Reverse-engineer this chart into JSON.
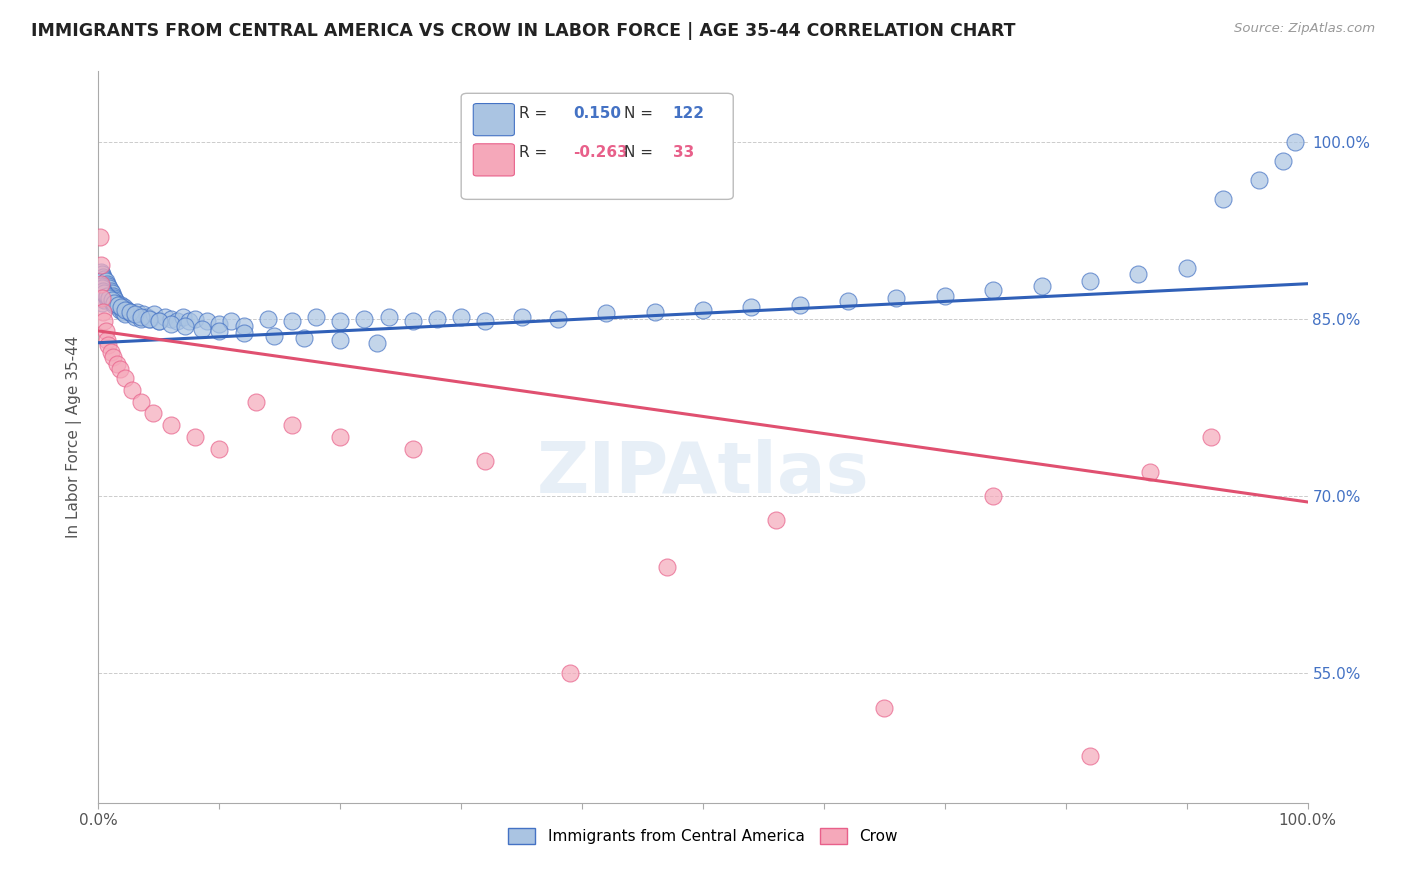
{
  "title": "IMMIGRANTS FROM CENTRAL AMERICA VS CROW IN LABOR FORCE | AGE 35-44 CORRELATION CHART",
  "source": "Source: ZipAtlas.com",
  "ylabel": "In Labor Force | Age 35-44",
  "xlim": [
    0.0,
    1.0
  ],
  "ylim": [
    0.44,
    1.06
  ],
  "y_ticks": [
    0.55,
    0.7,
    0.85,
    1.0
  ],
  "y_tick_labels": [
    "55.0%",
    "70.0%",
    "85.0%",
    "100.0%"
  ],
  "blue_R": 0.15,
  "blue_N": 122,
  "pink_R": -0.263,
  "pink_N": 33,
  "blue_color": "#aac4e2",
  "pink_color": "#f5a8ba",
  "blue_edge_color": "#4472c4",
  "pink_edge_color": "#e8608a",
  "blue_line_color": "#3060b8",
  "pink_line_color": "#e05070",
  "legend_label_blue": "Immigrants from Central America",
  "legend_label_pink": "Crow",
  "blue_line_y0": 0.83,
  "blue_line_y1": 0.88,
  "pink_line_y0": 0.84,
  "pink_line_y1": 0.695,
  "blue_scatter_x": [
    0.001,
    0.001,
    0.001,
    0.002,
    0.002,
    0.002,
    0.002,
    0.003,
    0.003,
    0.003,
    0.003,
    0.003,
    0.004,
    0.004,
    0.004,
    0.004,
    0.005,
    0.005,
    0.005,
    0.005,
    0.006,
    0.006,
    0.006,
    0.007,
    0.007,
    0.007,
    0.008,
    0.008,
    0.009,
    0.009,
    0.01,
    0.01,
    0.011,
    0.011,
    0.012,
    0.012,
    0.013,
    0.013,
    0.014,
    0.015,
    0.016,
    0.017,
    0.018,
    0.019,
    0.02,
    0.021,
    0.022,
    0.024,
    0.026,
    0.028,
    0.03,
    0.032,
    0.035,
    0.037,
    0.04,
    0.043,
    0.046,
    0.05,
    0.055,
    0.06,
    0.065,
    0.07,
    0.075,
    0.08,
    0.09,
    0.1,
    0.11,
    0.12,
    0.14,
    0.16,
    0.18,
    0.2,
    0.22,
    0.24,
    0.26,
    0.28,
    0.3,
    0.32,
    0.35,
    0.38,
    0.42,
    0.46,
    0.5,
    0.54,
    0.58,
    0.62,
    0.66,
    0.7,
    0.74,
    0.78,
    0.82,
    0.86,
    0.9,
    0.93,
    0.96,
    0.98,
    0.99,
    0.002,
    0.003,
    0.004,
    0.005,
    0.007,
    0.009,
    0.011,
    0.013,
    0.016,
    0.019,
    0.022,
    0.026,
    0.03,
    0.035,
    0.042,
    0.05,
    0.06,
    0.072,
    0.086,
    0.1,
    0.12,
    0.145,
    0.17,
    0.2,
    0.23
  ],
  "blue_scatter_y": [
    0.885,
    0.878,
    0.872,
    0.89,
    0.882,
    0.875,
    0.868,
    0.888,
    0.882,
    0.876,
    0.87,
    0.864,
    0.886,
    0.88,
    0.874,
    0.868,
    0.884,
    0.878,
    0.872,
    0.866,
    0.882,
    0.876,
    0.87,
    0.88,
    0.874,
    0.868,
    0.878,
    0.872,
    0.876,
    0.87,
    0.874,
    0.868,
    0.872,
    0.866,
    0.87,
    0.864,
    0.868,
    0.862,
    0.866,
    0.864,
    0.862,
    0.86,
    0.858,
    0.862,
    0.856,
    0.86,
    0.854,
    0.858,
    0.856,
    0.854,
    0.852,
    0.856,
    0.85,
    0.854,
    0.852,
    0.85,
    0.854,
    0.848,
    0.852,
    0.85,
    0.848,
    0.852,
    0.848,
    0.85,
    0.848,
    0.846,
    0.848,
    0.844,
    0.85,
    0.848,
    0.852,
    0.848,
    0.85,
    0.852,
    0.848,
    0.85,
    0.852,
    0.848,
    0.852,
    0.85,
    0.855,
    0.856,
    0.858,
    0.86,
    0.862,
    0.865,
    0.868,
    0.87,
    0.875,
    0.878,
    0.882,
    0.888,
    0.893,
    0.952,
    0.968,
    0.984,
    1.0,
    0.878,
    0.876,
    0.874,
    0.872,
    0.87,
    0.868,
    0.866,
    0.864,
    0.862,
    0.86,
    0.858,
    0.856,
    0.854,
    0.852,
    0.85,
    0.848,
    0.846,
    0.844,
    0.842,
    0.84,
    0.838,
    0.836,
    0.834,
    0.832,
    0.83
  ],
  "pink_scatter_x": [
    0.001,
    0.002,
    0.002,
    0.003,
    0.004,
    0.005,
    0.006,
    0.007,
    0.008,
    0.01,
    0.012,
    0.015,
    0.018,
    0.022,
    0.028,
    0.035,
    0.045,
    0.06,
    0.08,
    0.1,
    0.13,
    0.16,
    0.2,
    0.26,
    0.32,
    0.39,
    0.47,
    0.56,
    0.65,
    0.74,
    0.82,
    0.87,
    0.92
  ],
  "pink_scatter_y": [
    0.92,
    0.896,
    0.88,
    0.868,
    0.856,
    0.848,
    0.84,
    0.832,
    0.828,
    0.822,
    0.818,
    0.812,
    0.808,
    0.8,
    0.79,
    0.78,
    0.77,
    0.76,
    0.75,
    0.74,
    0.78,
    0.76,
    0.75,
    0.74,
    0.73,
    0.55,
    0.64,
    0.68,
    0.52,
    0.7,
    0.48,
    0.72,
    0.75
  ]
}
